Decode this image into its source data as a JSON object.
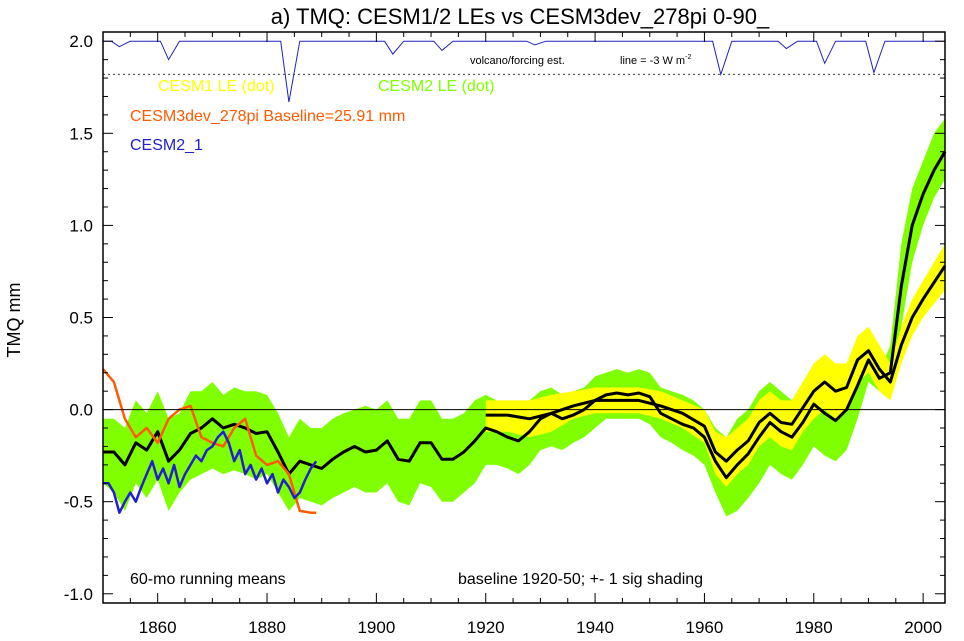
{
  "chart_data": {
    "type": "line",
    "title": "a) TMQ: CESM1/2 LEs vs CESM3dev_278pi 0-90_",
    "ylabel": "TMQ mm",
    "xlabel": "",
    "xlim": [
      1850,
      2004
    ],
    "ylim": [
      -1.05,
      2.05
    ],
    "x_ticks": [
      1860,
      1880,
      1900,
      1920,
      1940,
      1960,
      1980,
      2000
    ],
    "y_ticks": [
      -1.0,
      -0.5,
      0.0,
      0.5,
      1.0,
      1.5,
      2.0
    ],
    "y_tick_labels": [
      "-1.0",
      "-0.5",
      "0.0",
      "0.5",
      "1.0",
      "1.5",
      "2.0"
    ],
    "x_tick_labels": [
      "1860",
      "1880",
      "1900",
      "1920",
      "1940",
      "1960",
      "1980",
      "2000"
    ],
    "annotations": {
      "running_means": "60-mo running means",
      "baseline_note": "baseline 1920-50; +- 1 sig shading",
      "volcano_label": "volcano/forcing est.",
      "volcano_scale": "line = -3 W m",
      "volcano_scale_sup": "-2"
    },
    "legend": {
      "cesm1": "CESM1 LE (dot)",
      "cesm2": "CESM2 LE (dot)",
      "cesm3": "CESM3dev_278pi Baseline=25.91 mm",
      "cesm2_1": "CESM2_1",
      "placement": "top-left"
    },
    "colors": {
      "cesm1": "#ffff00",
      "cesm2": "#80ff00",
      "cesm3": "#ff5a00",
      "cesm2_1": "#2020d0",
      "ensemble_mean": "#000000",
      "volcano": "#2020c0",
      "zero_line": "#000000"
    },
    "volcano_line_y": 1.82,
    "series": [
      {
        "name": "CESM2 LE (dot)",
        "kind": "band",
        "x": [
          1850,
          1852,
          1854,
          1856,
          1858,
          1860,
          1862,
          1864,
          1866,
          1868,
          1870,
          1872,
          1874,
          1876,
          1878,
          1880,
          1882,
          1884,
          1886,
          1888,
          1890,
          1892,
          1894,
          1896,
          1898,
          1900,
          1902,
          1904,
          1906,
          1908,
          1910,
          1912,
          1914,
          1916,
          1918,
          1920,
          1922,
          1924,
          1926,
          1928,
          1930,
          1932,
          1934,
          1936,
          1938,
          1940,
          1942,
          1944,
          1946,
          1948,
          1950,
          1952,
          1954,
          1956,
          1958,
          1960,
          1962,
          1964,
          1966,
          1968,
          1970,
          1972,
          1974,
          1976,
          1978,
          1980,
          1982,
          1984,
          1986,
          1988,
          1990,
          1992,
          1994,
          1996,
          1998,
          2000,
          2002,
          2004
        ],
        "upper": [
          -0.05,
          -0.05,
          -0.1,
          0.05,
          -0.02,
          0.1,
          -0.05,
          -0.02,
          0.1,
          0.1,
          0.15,
          0.08,
          0.12,
          0.1,
          0.1,
          0.08,
          -0.02,
          -0.15,
          -0.05,
          -0.1,
          -0.1,
          -0.05,
          -0.02,
          0.0,
          0.02,
          0.0,
          0.05,
          -0.05,
          -0.05,
          0.05,
          0.05,
          -0.05,
          -0.05,
          -0.02,
          0.05,
          0.08,
          0.05,
          0.02,
          0.0,
          0.05,
          0.1,
          0.12,
          0.08,
          0.1,
          0.12,
          0.18,
          0.2,
          0.22,
          0.2,
          0.22,
          0.2,
          0.12,
          0.1,
          0.08,
          0.05,
          0.0,
          -0.1,
          -0.15,
          -0.05,
          0.0,
          0.1,
          0.15,
          0.1,
          0.05,
          0.15,
          0.25,
          0.2,
          0.15,
          0.2,
          0.3,
          0.35,
          0.2,
          0.35,
          0.9,
          1.2,
          1.35,
          1.5,
          1.58
        ],
        "lower": [
          -0.4,
          -0.45,
          -0.55,
          -0.4,
          -0.48,
          -0.38,
          -0.55,
          -0.45,
          -0.38,
          -0.35,
          -0.32,
          -0.35,
          -0.33,
          -0.35,
          -0.38,
          -0.35,
          -0.45,
          -0.55,
          -0.48,
          -0.5,
          -0.52,
          -0.48,
          -0.45,
          -0.42,
          -0.45,
          -0.45,
          -0.4,
          -0.5,
          -0.52,
          -0.4,
          -0.42,
          -0.5,
          -0.5,
          -0.45,
          -0.4,
          -0.3,
          -0.3,
          -0.32,
          -0.35,
          -0.3,
          -0.22,
          -0.2,
          -0.22,
          -0.18,
          -0.15,
          -0.1,
          -0.05,
          -0.05,
          -0.05,
          -0.05,
          -0.08,
          -0.15,
          -0.18,
          -0.22,
          -0.25,
          -0.3,
          -0.45,
          -0.58,
          -0.55,
          -0.48,
          -0.4,
          -0.3,
          -0.35,
          -0.38,
          -0.3,
          -0.2,
          -0.25,
          -0.28,
          -0.22,
          -0.05,
          0.15,
          0.1,
          0.05,
          0.45,
          0.8,
          1.0,
          1.15,
          1.25
        ],
        "mean": [
          -0.23,
          -0.23,
          -0.3,
          -0.18,
          -0.22,
          -0.12,
          -0.28,
          -0.22,
          -0.13,
          -0.1,
          -0.05,
          -0.1,
          -0.08,
          -0.1,
          -0.13,
          -0.12,
          -0.23,
          -0.35,
          -0.28,
          -0.3,
          -0.32,
          -0.27,
          -0.23,
          -0.2,
          -0.23,
          -0.22,
          -0.17,
          -0.27,
          -0.28,
          -0.18,
          -0.18,
          -0.27,
          -0.27,
          -0.23,
          -0.17,
          -0.1,
          -0.12,
          -0.15,
          -0.17,
          -0.12,
          -0.05,
          -0.02,
          -0.05,
          -0.03,
          0.0,
          0.05,
          0.08,
          0.09,
          0.08,
          0.09,
          0.07,
          -0.02,
          -0.05,
          -0.08,
          -0.1,
          -0.15,
          -0.28,
          -0.37,
          -0.3,
          -0.24,
          -0.15,
          -0.07,
          -0.12,
          -0.15,
          -0.07,
          0.03,
          -0.02,
          -0.06,
          0.0,
          0.13,
          0.27,
          0.17,
          0.2,
          0.67,
          1.0,
          1.17,
          1.3,
          1.4
        ]
      },
      {
        "name": "CESM1 LE (dot)",
        "kind": "band",
        "x": [
          1920,
          1924,
          1928,
          1932,
          1936,
          1940,
          1944,
          1948,
          1952,
          1956,
          1960,
          1962,
          1964,
          1966,
          1968,
          1970,
          1972,
          1974,
          1976,
          1978,
          1980,
          1982,
          1984,
          1986,
          1988,
          1990,
          1992,
          1994,
          1996,
          1998,
          2000,
          2004
        ],
        "upper": [
          0.05,
          0.05,
          0.05,
          0.08,
          0.1,
          0.12,
          0.12,
          0.12,
          0.1,
          0.05,
          0.0,
          -0.12,
          -0.15,
          -0.1,
          -0.05,
          0.05,
          0.1,
          0.05,
          0.05,
          0.15,
          0.25,
          0.3,
          0.25,
          0.25,
          0.4,
          0.45,
          0.35,
          0.25,
          0.45,
          0.6,
          0.7,
          0.9
        ],
        "lower": [
          -0.12,
          -0.12,
          -0.15,
          -0.12,
          -0.05,
          -0.02,
          -0.02,
          -0.02,
          -0.05,
          -0.1,
          -0.18,
          -0.35,
          -0.42,
          -0.35,
          -0.3,
          -0.2,
          -0.15,
          -0.2,
          -0.22,
          -0.12,
          -0.05,
          0.0,
          -0.05,
          0.0,
          0.15,
          0.2,
          0.1,
          0.05,
          0.25,
          0.4,
          0.5,
          0.65
        ],
        "mean": [
          -0.03,
          -0.03,
          -0.05,
          -0.02,
          0.02,
          0.05,
          0.05,
          0.05,
          0.02,
          -0.02,
          -0.09,
          -0.23,
          -0.28,
          -0.22,
          -0.17,
          -0.07,
          -0.02,
          -0.07,
          -0.08,
          0.01,
          0.1,
          0.15,
          0.1,
          0.12,
          0.27,
          0.32,
          0.22,
          0.15,
          0.35,
          0.5,
          0.6,
          0.78
        ]
      },
      {
        "name": "CESM3dev_278pi Baseline=25.91 mm",
        "kind": "line",
        "x": [
          1850,
          1852,
          1854,
          1856,
          1858,
          1860,
          1862,
          1864,
          1866,
          1868,
          1870,
          1872,
          1874,
          1876,
          1878,
          1880,
          1882,
          1884,
          1886,
          1888,
          1889
        ],
        "y": [
          0.22,
          0.15,
          -0.05,
          -0.15,
          -0.1,
          -0.18,
          -0.05,
          0.0,
          0.02,
          -0.15,
          -0.18,
          -0.2,
          -0.1,
          -0.05,
          -0.25,
          -0.3,
          -0.28,
          -0.35,
          -0.55,
          -0.56,
          -0.56
        ]
      },
      {
        "name": "CESM2_1",
        "kind": "line",
        "x": [
          1850,
          1851,
          1852,
          1853,
          1854,
          1855,
          1856,
          1857,
          1858,
          1859,
          1860,
          1861,
          1862,
          1863,
          1864,
          1865,
          1866,
          1867,
          1868,
          1869,
          1870,
          1871,
          1872,
          1873,
          1874,
          1875,
          1876,
          1877,
          1878,
          1879,
          1880,
          1881,
          1882,
          1883,
          1884,
          1885,
          1886,
          1887,
          1888,
          1889
        ],
        "y": [
          -0.4,
          -0.4,
          -0.45,
          -0.56,
          -0.5,
          -0.45,
          -0.5,
          -0.42,
          -0.35,
          -0.28,
          -0.38,
          -0.32,
          -0.4,
          -0.3,
          -0.42,
          -0.35,
          -0.3,
          -0.25,
          -0.28,
          -0.22,
          -0.2,
          -0.15,
          -0.12,
          -0.18,
          -0.28,
          -0.22,
          -0.35,
          -0.3,
          -0.38,
          -0.32,
          -0.4,
          -0.35,
          -0.45,
          -0.38,
          -0.42,
          -0.48,
          -0.45,
          -0.38,
          -0.32,
          -0.28
        ]
      },
      {
        "name": "volcano/forcing est.",
        "kind": "spikes",
        "baseline": 2.0,
        "events": [
          {
            "year": 1853,
            "depth": 0.03
          },
          {
            "year": 1862,
            "depth": 0.1
          },
          {
            "year": 1884,
            "depth": 0.33
          },
          {
            "year": 1903,
            "depth": 0.07
          },
          {
            "year": 1912,
            "depth": 0.05
          },
          {
            "year": 1929,
            "depth": 0.02
          },
          {
            "year": 1963,
            "depth": 0.18
          },
          {
            "year": 1975,
            "depth": 0.04
          },
          {
            "year": 1982,
            "depth": 0.12
          },
          {
            "year": 1991,
            "depth": 0.17
          }
        ]
      }
    ]
  }
}
